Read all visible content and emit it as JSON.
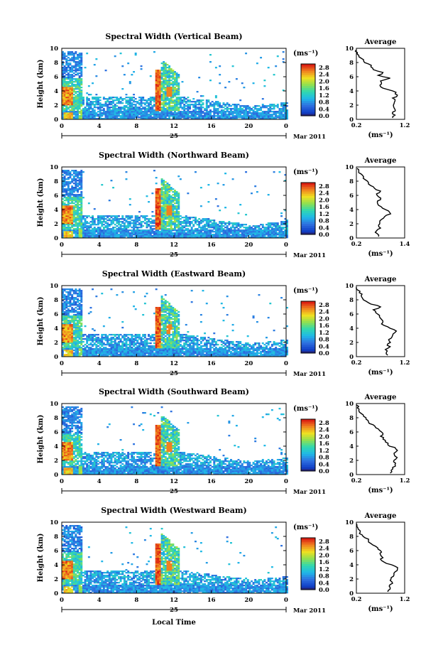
{
  "figure": {
    "xlabel": "Local Time",
    "ylabel": "Height (km)",
    "date_day": "25",
    "date_month": "Mar 2011",
    "colorbar_unit": "(ms⁻¹)",
    "average_title": "Average",
    "average_xlabel": "(ms⁻¹)",
    "x_ticks": [
      "0",
      "4",
      "8",
      "12",
      "16",
      "20",
      "0"
    ],
    "y_ticks": [
      "0",
      "2",
      "4",
      "6",
      "8",
      "10"
    ],
    "colorbar_ticks": [
      "0.0",
      "0.4",
      "0.8",
      "1.2",
      "1.6",
      "2.0",
      "2.4",
      "2.8"
    ]
  },
  "chart_data": [
    {
      "type": "heatmap",
      "title": "Spectral Width (Vertical Beam)",
      "xlim": [
        0,
        24
      ],
      "ylim": [
        0,
        10
      ],
      "clim": [
        0,
        3.0
      ],
      "average": {
        "type": "line",
        "title": "Average",
        "xlim": [
          0.2,
          1.2
        ],
        "x_tick_labels": [
          "0.2",
          "1.2"
        ],
        "height": [
          0.2,
          0.6,
          1.0,
          1.4,
          1.8,
          2.2,
          2.6,
          3.0,
          3.4,
          3.8,
          4.2,
          4.6,
          5.0,
          5.4,
          5.8,
          6.2,
          6.6,
          7.0,
          7.4,
          7.8,
          8.2,
          8.6,
          9.0,
          9.4,
          9.8
        ],
        "values": [
          0.95,
          1.0,
          0.95,
          1.0,
          0.97,
          0.98,
          1.0,
          0.95,
          1.05,
          1.02,
          0.85,
          0.7,
          0.72,
          0.7,
          0.9,
          0.65,
          0.75,
          0.55,
          0.5,
          0.45,
          0.35,
          0.3,
          0.25,
          0.22,
          0.2
        ]
      }
    },
    {
      "type": "heatmap",
      "title": "Spectral Width (Northward Beam)",
      "xlim": [
        0,
        24
      ],
      "ylim": [
        0,
        10
      ],
      "clim": [
        0,
        3.0
      ],
      "average": {
        "type": "line",
        "title": "Average",
        "xlim": [
          0.2,
          1.4
        ],
        "x_tick_labels": [
          "0.2",
          "1.4"
        ],
        "height": [
          0.2,
          0.6,
          1.0,
          1.4,
          1.8,
          2.2,
          2.6,
          3.0,
          3.4,
          3.8,
          4.2,
          4.6,
          5.0,
          5.4,
          5.8,
          6.2,
          6.6,
          7.0,
          7.4,
          7.8,
          8.2,
          8.6,
          9.0,
          9.4,
          9.8
        ],
        "values": [
          0.75,
          0.72,
          0.7,
          0.8,
          0.75,
          0.78,
          0.82,
          0.9,
          1.05,
          1.0,
          0.85,
          0.75,
          0.72,
          0.8,
          0.75,
          0.7,
          0.8,
          0.65,
          0.55,
          0.5,
          0.42,
          0.38,
          0.32,
          0.26,
          0.22
        ]
      }
    },
    {
      "type": "heatmap",
      "title": "Spectral Width (Eastward Beam)",
      "xlim": [
        0,
        24
      ],
      "ylim": [
        0,
        10
      ],
      "clim": [
        0,
        3.0
      ],
      "average": {
        "type": "line",
        "title": "Average",
        "xlim": [
          0.2,
          1.2
        ],
        "x_tick_labels": [
          "0.2",
          "1.2"
        ],
        "height": [
          0.2,
          0.6,
          1.0,
          1.4,
          1.8,
          2.2,
          2.6,
          3.0,
          3.4,
          3.8,
          4.2,
          4.6,
          5.0,
          5.4,
          5.8,
          6.2,
          6.6,
          7.0,
          7.4,
          7.8,
          8.2,
          8.6,
          9.0,
          9.4,
          9.8
        ],
        "values": [
          0.85,
          0.82,
          0.8,
          0.9,
          0.85,
          0.88,
          0.92,
          0.95,
          1.0,
          0.98,
          0.85,
          0.72,
          0.75,
          0.7,
          0.68,
          0.6,
          0.55,
          0.7,
          0.5,
          0.4,
          0.33,
          0.3,
          0.26,
          0.22,
          0.2
        ]
      }
    },
    {
      "type": "heatmap",
      "title": "Spectral Width (Southward Beam)",
      "xlim": [
        0,
        24
      ],
      "ylim": [
        0,
        10
      ],
      "clim": [
        0,
        3.0
      ],
      "average": {
        "type": "line",
        "title": "Average",
        "xlim": [
          0.2,
          1.2
        ],
        "x_tick_labels": [
          "0.2",
          "1.2"
        ],
        "height": [
          0.2,
          0.6,
          1.0,
          1.4,
          1.8,
          2.2,
          2.6,
          3.0,
          3.4,
          3.8,
          4.2,
          4.6,
          5.0,
          5.4,
          5.8,
          6.2,
          6.6,
          7.0,
          7.4,
          7.8,
          8.2,
          8.6,
          9.0,
          9.4,
          9.8
        ],
        "values": [
          0.9,
          0.92,
          0.95,
          1.0,
          0.97,
          1.02,
          1.0,
          0.98,
          1.05,
          1.0,
          0.85,
          0.8,
          0.75,
          0.7,
          0.75,
          0.68,
          0.6,
          0.55,
          0.45,
          0.4,
          0.35,
          0.3,
          0.25,
          0.22,
          0.2
        ]
      }
    },
    {
      "type": "heatmap",
      "title": "Spectral Width (Westward Beam)",
      "xlim": [
        0,
        24
      ],
      "ylim": [
        0,
        10
      ],
      "clim": [
        0,
        3.0
      ],
      "average": {
        "type": "line",
        "title": "Average",
        "xlim": [
          0.2,
          1.2
        ],
        "x_tick_labels": [
          "0.2",
          "1.2"
        ],
        "height": [
          0.2,
          0.6,
          1.0,
          1.4,
          1.8,
          2.2,
          2.6,
          3.0,
          3.4,
          3.8,
          4.2,
          4.6,
          5.0,
          5.4,
          5.8,
          6.2,
          6.6,
          7.0,
          7.4,
          7.8,
          8.2,
          8.6,
          9.0,
          9.4,
          9.8
        ],
        "values": [
          0.85,
          0.9,
          0.88,
          0.95,
          0.9,
          0.92,
          0.98,
          1.0,
          1.05,
          1.0,
          0.82,
          0.72,
          0.75,
          0.7,
          0.72,
          0.65,
          0.6,
          0.5,
          0.45,
          0.38,
          0.32,
          0.28,
          0.24,
          0.21,
          0.2
        ]
      }
    }
  ]
}
